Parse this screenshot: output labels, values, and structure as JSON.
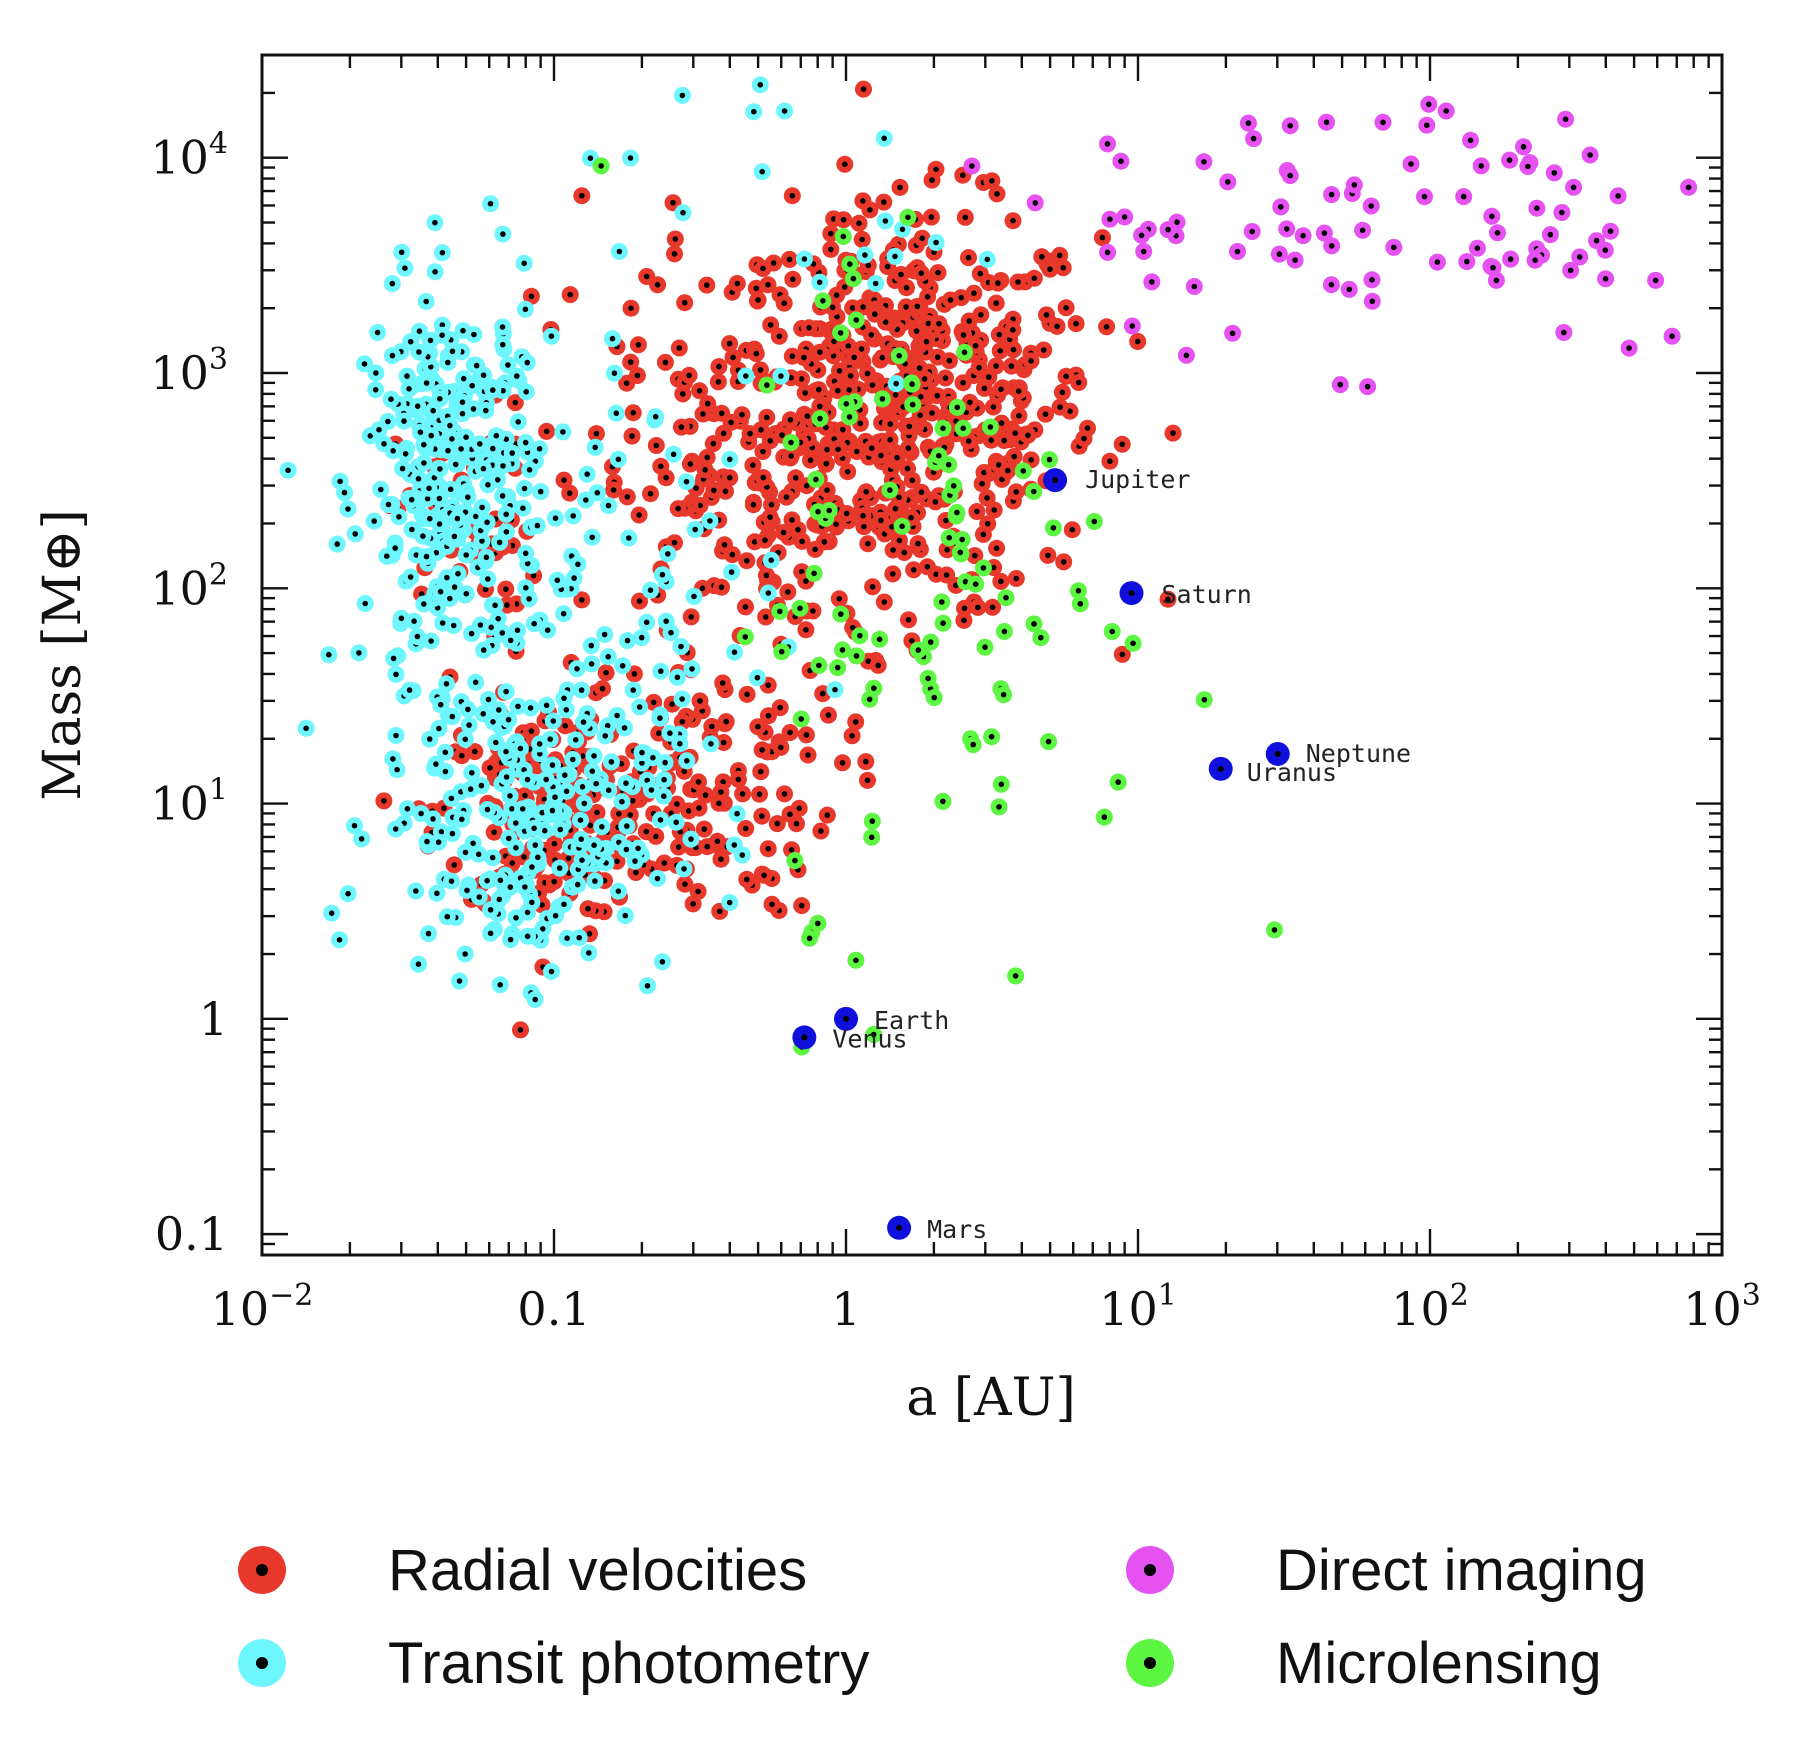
{
  "chart_data": {
    "type": "scatter",
    "xlabel": "a [AU]",
    "ylabel": "Mass [M⊕]",
    "xscale": "log",
    "yscale": "log",
    "xlim": [
      0.01,
      1000
    ],
    "ylim": [
      0.08,
      30000
    ],
    "x_ticks": [
      {
        "value": 0.01,
        "base": "10",
        "exp": "−2"
      },
      {
        "value": 0.1,
        "base": "0.1",
        "exp": ""
      },
      {
        "value": 1,
        "base": "1",
        "exp": ""
      },
      {
        "value": 10,
        "base": "10",
        "exp": "1"
      },
      {
        "value": 100,
        "base": "10",
        "exp": "2"
      },
      {
        "value": 1000,
        "base": "10",
        "exp": "3"
      }
    ],
    "y_ticks": [
      {
        "value": 0.1,
        "base": "0.1",
        "exp": ""
      },
      {
        "value": 1,
        "base": "1",
        "exp": ""
      },
      {
        "value": 10,
        "base": "10",
        "exp": "1"
      },
      {
        "value": 100,
        "base": "10",
        "exp": "2"
      },
      {
        "value": 1000,
        "base": "10",
        "exp": "3"
      },
      {
        "value": 10000,
        "base": "10",
        "exp": "4"
      }
    ],
    "legend_position": "bottom",
    "series": [
      {
        "name": "Radial velocities",
        "color": "#e8372b",
        "clusters": [
          {
            "x": 1.6,
            "y": 700,
            "sx": 0.33,
            "sy": 0.45,
            "n": 520
          },
          {
            "x": 0.1,
            "y": 9,
            "sx": 0.2,
            "sy": 0.25,
            "n": 180
          },
          {
            "x": 0.3,
            "y": 12,
            "sx": 0.25,
            "sy": 0.3,
            "n": 110
          },
          {
            "x": 0.05,
            "y": 180,
            "sx": 0.12,
            "sy": 0.3,
            "n": 45
          },
          {
            "x": 0.45,
            "y": 300,
            "sx": 0.35,
            "sy": 0.6,
            "n": 160
          }
        ]
      },
      {
        "name": "Transit photometry",
        "color": "#6ef6ff",
        "clusters": [
          {
            "x": 0.045,
            "y": 300,
            "sx": 0.15,
            "sy": 0.45,
            "n": 300
          },
          {
            "x": 0.08,
            "y": 8,
            "sx": 0.25,
            "sy": 0.35,
            "n": 220
          },
          {
            "x": 0.15,
            "y": 60,
            "sx": 0.3,
            "sy": 0.6,
            "n": 90
          },
          {
            "x": 0.5,
            "y": 5000,
            "sx": 0.35,
            "sy": 0.4,
            "n": 25
          }
        ]
      },
      {
        "name": "Direct imaging",
        "color": "#e652f2",
        "clusters": [
          {
            "x": 100,
            "y": 6000,
            "sx": 0.6,
            "sy": 0.35,
            "n": 85
          },
          {
            "x": 10,
            "y": 3000,
            "sx": 0.2,
            "sy": 0.35,
            "n": 10
          }
        ]
      },
      {
        "name": "Microlensing",
        "color": "#5cf542",
        "clusters": [
          {
            "x": 3,
            "y": 40,
            "sx": 0.35,
            "sy": 0.55,
            "n": 55
          },
          {
            "x": 1.5,
            "y": 500,
            "sx": 0.3,
            "sy": 0.6,
            "n": 45
          },
          {
            "x": 1,
            "y": 2,
            "sx": 0.15,
            "sy": 0.2,
            "n": 4
          }
        ]
      }
    ],
    "solar_system": {
      "color": "#1010dd",
      "planets": [
        {
          "name": "Jupiter",
          "x": 5.2,
          "y": 318
        },
        {
          "name": "Saturn",
          "x": 9.5,
          "y": 95
        },
        {
          "name": "Neptune",
          "x": 30.1,
          "y": 17
        },
        {
          "name": "Uranus",
          "x": 19.2,
          "y": 14.5
        },
        {
          "name": "Earth",
          "x": 1.0,
          "y": 1.0
        },
        {
          "name": "Venus",
          "x": 0.72,
          "y": 0.82
        },
        {
          "name": "Mars",
          "x": 1.52,
          "y": 0.107
        }
      ]
    }
  }
}
